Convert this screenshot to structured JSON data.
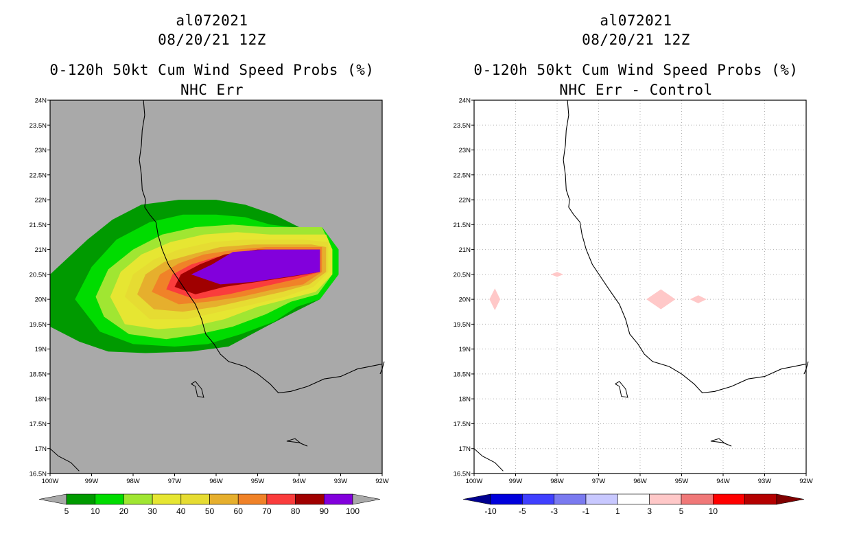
{
  "panels": [
    {
      "id": "left",
      "title_line1": "al072021",
      "title_line2": "08/20/21 12Z",
      "title_line3": "0-120h 50kt Cum Wind Speed Probs (%)",
      "title_line4": "NHC Err"
    },
    {
      "id": "right",
      "title_line1": "al072021",
      "title_line2": "08/20/21 12Z",
      "title_line3": "0-120h 50kt Cum Wind Speed Probs (%)",
      "title_line4": "NHC Err - Control"
    }
  ],
  "chart_data": [
    {
      "type": "heatmap",
      "title": "0-120h 50kt Cum Wind Speed Probs (%) NHC Err",
      "xlim_lon": [
        -100,
        -92
      ],
      "ylim_lat": [
        16.5,
        24
      ],
      "x_tick_labels": [
        "100W",
        "99W",
        "98W",
        "97W",
        "96W",
        "95W",
        "94W",
        "93W",
        "92W"
      ],
      "y_tick_labels": [
        "16.5N",
        "17N",
        "17.5N",
        "18N",
        "18.5N",
        "19N",
        "19.5N",
        "20N",
        "20.5N",
        "21N",
        "21.5N",
        "22N",
        "22.5N",
        "23N",
        "23.5N",
        "24N"
      ],
      "background_color": "#a9a9a9",
      "grid": false,
      "colorbar": {
        "levels": [
          "5",
          "10",
          "20",
          "30",
          "40",
          "50",
          "60",
          "70",
          "80",
          "90",
          "100"
        ],
        "colors": [
          "#009a00",
          "#00dc00",
          "#a0e632",
          "#e6e632",
          "#e6dc32",
          "#e6af2d",
          "#f08228",
          "#fa3c3c",
          "#a00000",
          "#8200dc"
        ],
        "under_color": "#a9a9a9",
        "over_color": "#a9a9a9"
      }
    },
    {
      "type": "heatmap",
      "title": "0-120h 50kt Cum Wind Speed Probs (%) NHC Err - Control",
      "xlim_lon": [
        -100,
        -92
      ],
      "ylim_lat": [
        16.5,
        24
      ],
      "x_tick_labels": [
        "100W",
        "99W",
        "98W",
        "97W",
        "96W",
        "95W",
        "94W",
        "93W",
        "92W"
      ],
      "y_tick_labels": [
        "16.5N",
        "17N",
        "17.5N",
        "18N",
        "18.5N",
        "19N",
        "19.5N",
        "20N",
        "20.5N",
        "21N",
        "21.5N",
        "22N",
        "22.5N",
        "23N",
        "23.5N",
        "24N"
      ],
      "background_color": "#ffffff",
      "grid": true,
      "difference_patches": [
        {
          "lon": -99.5,
          "lat": 20.0,
          "range": "1 to 3"
        },
        {
          "lon": -98.0,
          "lat": 20.5,
          "range": "1 to 3"
        },
        {
          "lon": -95.5,
          "lat": 20.0,
          "range": "1 to 3"
        },
        {
          "lon": -94.6,
          "lat": 20.0,
          "range": "1 to 3"
        }
      ],
      "colorbar": {
        "levels": [
          "-10",
          "-5",
          "-3",
          "-1",
          "1",
          "3",
          "5",
          "10"
        ],
        "colors": [
          "#0000dc",
          "#4040ff",
          "#7a7af0",
          "#c8c8ff",
          "#ffffff",
          "#ffc8c8",
          "#f07878",
          "#ff0000",
          "#b40000"
        ],
        "under_color": "#000090",
        "over_color": "#800000"
      }
    }
  ]
}
